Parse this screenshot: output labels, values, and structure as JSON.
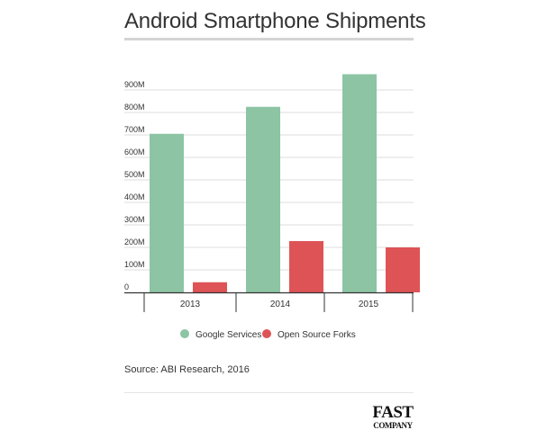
{
  "title": "Android Smartphone Shipments",
  "source": "Source: ABI Research, 2016",
  "logo": {
    "line1": "FAST",
    "line2": "COMPANY"
  },
  "colors": {
    "google": "#8cc4a4",
    "open_source": "#de5356",
    "grid": "#dcdcdc",
    "axis": "#333333",
    "text": "#333333"
  },
  "chart_data": {
    "type": "bar",
    "title": "Android Smartphone Shipments",
    "xlabel": "",
    "ylabel": "",
    "categories": [
      "2013",
      "2014",
      "2015"
    ],
    "series": [
      {
        "name": "Google Services",
        "values": [
          705,
          825,
          970
        ]
      },
      {
        "name": "Open Source Forks",
        "values": [
          45,
          228,
          200
        ]
      }
    ],
    "ylim": [
      0,
      1000
    ],
    "yticks": [
      0,
      100,
      200,
      300,
      400,
      500,
      600,
      700,
      800,
      900
    ],
    "ytick_labels": [
      "0",
      "100M",
      "200M",
      "300M",
      "400M",
      "500M",
      "600M",
      "700M",
      "800M",
      "900M"
    ],
    "grid": true,
    "legend": "bottom-center"
  }
}
